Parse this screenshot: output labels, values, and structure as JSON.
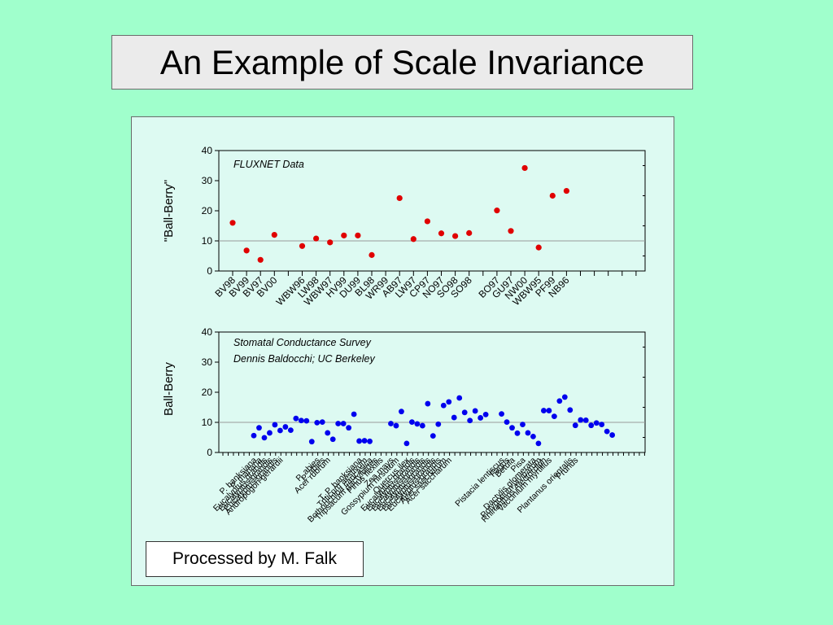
{
  "slide": {
    "title": "An Example of Scale Invariance",
    "credit": "Processed by M. Falk"
  },
  "colors": {
    "background": "#a0ffcc",
    "panel": "#ddfaf2",
    "fluxnet_points": "#e00000",
    "survey_points": "#0000ee",
    "reference_line": "#999999"
  },
  "chart_data": [
    {
      "type": "scatter",
      "ylabel": "\"Ball-Berry\"",
      "xlabel": "",
      "annotations": [
        "FLUXNET Data"
      ],
      "ylim": [
        0,
        40
      ],
      "yticks": [
        0,
        10,
        20,
        30,
        40
      ],
      "reference_line": 10,
      "grid": false,
      "points": [
        {
          "label": "BV98",
          "y": 16.0
        },
        {
          "label": "BV99",
          "y": 6.8
        },
        {
          "label": "BV97",
          "y": 3.7
        },
        {
          "label": "BV00",
          "y": 12.0
        },
        {
          "label": "",
          "y": null
        },
        {
          "label": "WBW96",
          "y": 8.3
        },
        {
          "label": "LW98",
          "y": 10.8
        },
        {
          "label": "WBW97",
          "y": 9.5
        },
        {
          "label": "HV99",
          "y": 11.8
        },
        {
          "label": "DU99",
          "y": 11.8
        },
        {
          "label": "BL98",
          "y": 5.3
        },
        {
          "label": "WR99",
          "y": null
        },
        {
          "label": "AB97",
          "y": 24.2
        },
        {
          "label": "LW97",
          "y": 10.6
        },
        {
          "label": "CP97",
          "y": 16.5
        },
        {
          "label": "NO97",
          "y": 12.5
        },
        {
          "label": "SO98",
          "y": 11.6
        },
        {
          "label": "SO98",
          "y": 12.6
        },
        {
          "label": "",
          "y": null
        },
        {
          "label": "BO97",
          "y": 20.1
        },
        {
          "label": "GU97",
          "y": 13.3
        },
        {
          "label": "NW00",
          "y": 34.2
        },
        {
          "label": "WBW95",
          "y": 7.8
        },
        {
          "label": "PF99",
          "y": 25.0
        },
        {
          "label": "NB96",
          "y": 26.6
        }
      ]
    },
    {
      "type": "scatter",
      "ylabel": "Ball-Berry",
      "xlabel": "",
      "annotations": [
        "Stomatal Conductance Survey",
        "Dennis Baldocchi; UC Berkeley"
      ],
      "ylim": [
        0,
        40
      ],
      "yticks": [
        0,
        10,
        20,
        30,
        40
      ],
      "reference_line": 10,
      "grid": false,
      "categories": [
        {
          "label": "P. banksiana",
          "values": [
            5.6
          ]
        },
        {
          "label": "P. mariana",
          "values": [
            8.2
          ]
        },
        {
          "label": "Eucalyptus grandis",
          "values": [
            4.9
          ]
        },
        {
          "label": "Eucalyptus grandis",
          "values": [
            6.5
          ]
        },
        {
          "label": "Eucalyptus grandis",
          "values": [
            9.2
          ]
        },
        {
          "label": "Andropogon gerardii",
          "values": [
            7.3
          ]
        },
        {
          "label": "",
          "values": [
            8.5
          ]
        },
        {
          "label": "",
          "values": [
            7.4
          ]
        },
        {
          "label": "",
          "values": [
            11.3
          ]
        },
        {
          "label": "",
          "values": [
            10.6
          ]
        },
        {
          "label": "",
          "values": [
            10.5
          ]
        },
        {
          "label": "",
          "values": [
            3.6
          ]
        },
        {
          "label": "P. abies",
          "values": [
            9.9
          ]
        },
        {
          "label": "P. abies",
          "values": [
            10.1
          ]
        },
        {
          "label": "Acer rubrum",
          "values": [
            6.5
          ]
        },
        {
          "label": "",
          "values": [
            4.4
          ]
        },
        {
          "label": "",
          "values": [
            9.6
          ]
        },
        {
          "label": "",
          "values": [
            9.6
          ]
        },
        {
          "label": "",
          "values": [
            8.2
          ]
        },
        {
          "label": "",
          "values": [
            12.7
          ]
        },
        {
          "label": "T. P. banksiana",
          "values": [
            3.8
          ]
        },
        {
          "label": "Triticum aestivum",
          "values": [
            3.9
          ]
        },
        {
          "label": "Bothriochloa caucasica",
          "values": [
            3.7
          ]
        },
        {
          "label": "Tripsacum dactyloides",
          "values": []
        },
        {
          "label": "Pinus flexilis",
          "values": []
        },
        {
          "label": "",
          "values": []
        },
        {
          "label": "Zea mays",
          "values": [
            9.6
          ]
        },
        {
          "label": "Gossypium hirsutum",
          "values": [
            8.9
          ]
        },
        {
          "label": "",
          "values": [
            13.6
          ]
        },
        {
          "label": "Quercus ilex",
          "values": [
            3.0
          ]
        },
        {
          "label": "Eucalyptus grandis",
          "values": [
            10.1
          ]
        },
        {
          "label": "Eucalyptus grandis",
          "values": [
            9.5
          ]
        },
        {
          "label": "Eucalyptus grandis",
          "values": [
            8.9
          ]
        },
        {
          "label": "Eucalyptus grandis",
          "values": [
            16.2
          ]
        },
        {
          "label": "Eucalyptus grandis",
          "values": [
            5.5
          ]
        },
        {
          "label": "Eucalyptus grandis",
          "values": [
            9.4
          ]
        },
        {
          "label": "Acer saccharum",
          "values": [
            15.6
          ]
        },
        {
          "label": "Acer saccharum",
          "values": [
            16.8
          ]
        },
        {
          "label": "",
          "values": [
            11.6
          ]
        },
        {
          "label": "",
          "values": [
            18.1
          ]
        },
        {
          "label": "",
          "values": [
            13.3
          ]
        },
        {
          "label": "",
          "values": [
            10.6
          ]
        },
        {
          "label": "",
          "values": [
            13.8
          ]
        },
        {
          "label": "",
          "values": [
            11.5
          ]
        },
        {
          "label": "",
          "values": [
            12.6
          ]
        },
        {
          "label": "",
          "values": []
        },
        {
          "label": "",
          "values": []
        },
        {
          "label": "Pistacia lentiscus",
          "values": [
            12.8
          ]
        },
        {
          "label": "Fagus",
          "values": [
            10.1
          ]
        },
        {
          "label": "Betula",
          "values": [
            8.2
          ]
        },
        {
          "label": "",
          "values": [
            6.4
          ]
        },
        {
          "label": "Pisa",
          "values": [
            9.3
          ]
        },
        {
          "label": "",
          "values": [
            6.5
          ]
        },
        {
          "label": "Dactylis glomerata",
          "values": [
            5.3
          ]
        },
        {
          "label": "Polygonum viviparum",
          "values": [
            3.0
          ]
        },
        {
          "label": "Rhinanthus Alectorolph",
          "values": [
            13.9
          ]
        },
        {
          "label": "Vaccinium myrtillus",
          "values": [
            13.9
          ]
        },
        {
          "label": "",
          "values": [
            12.0
          ]
        },
        {
          "label": "",
          "values": [
            17.1
          ]
        },
        {
          "label": "",
          "values": [
            18.4
          ]
        },
        {
          "label": "Plantanus orientalis",
          "values": [
            14.1
          ]
        },
        {
          "label": "Prunus",
          "values": [
            9.0
          ]
        },
        {
          "label": "",
          "values": [
            10.8
          ]
        },
        {
          "label": "",
          "values": [
            10.7
          ]
        },
        {
          "label": "",
          "values": [
            9.0
          ]
        },
        {
          "label": "",
          "values": [
            9.8
          ]
        },
        {
          "label": "",
          "values": [
            9.3
          ]
        },
        {
          "label": "",
          "values": [
            7.0
          ]
        },
        {
          "label": "",
          "values": [
            5.8
          ]
        }
      ]
    }
  ]
}
